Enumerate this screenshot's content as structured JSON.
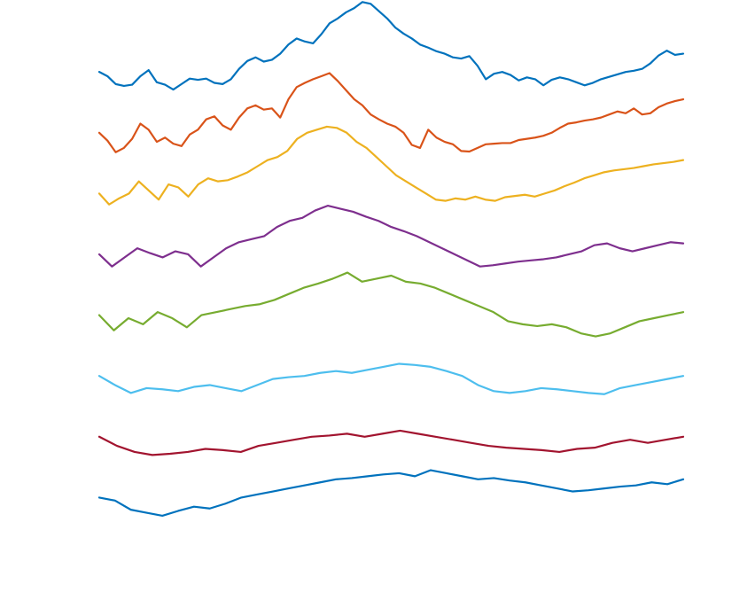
{
  "chart_data": {
    "type": "line",
    "title": "",
    "xlabel": "",
    "ylabel": "",
    "axes_visible": false,
    "grid": false,
    "legend": "none",
    "x": {
      "start": 1,
      "step": 1,
      "count": 100
    },
    "ylim": [
      0,
      8.6
    ],
    "series": [
      {
        "color": "#0072BD",
        "offset": 8,
        "values": [
          0.0,
          -0.07,
          -0.2,
          -0.23,
          -0.21,
          -0.07,
          0.03,
          -0.17,
          -0.21,
          -0.29,
          -0.2,
          -0.11,
          -0.13,
          -0.11,
          -0.18,
          -0.2,
          -0.12,
          0.05,
          0.18,
          0.24,
          0.17,
          0.2,
          0.3,
          0.45,
          0.55,
          0.5,
          0.47,
          0.62,
          0.8,
          0.88,
          0.98,
          1.05,
          1.15,
          1.12,
          1.0,
          0.88,
          0.73,
          0.63,
          0.55,
          0.45,
          0.4,
          0.34,
          0.3,
          0.24,
          0.22,
          0.26,
          0.1,
          -0.12,
          -0.03,
          0.0,
          -0.05,
          -0.14,
          -0.09,
          -0.12,
          -0.22,
          -0.13,
          -0.09,
          -0.12,
          -0.17,
          -0.22,
          -0.18,
          -0.12,
          -0.08,
          -0.04,
          0.0,
          0.02,
          0.05,
          0.14,
          0.27,
          0.35,
          0.28,
          0.3
        ]
      },
      {
        "color": "#D95319",
        "offset": 7,
        "values": [
          0.0,
          -0.13,
          -0.32,
          -0.25,
          -0.1,
          0.15,
          0.05,
          -0.15,
          -0.08,
          -0.18,
          -0.22,
          -0.03,
          0.05,
          0.22,
          0.27,
          0.12,
          0.05,
          0.25,
          0.4,
          0.45,
          0.38,
          0.4,
          0.25,
          0.55,
          0.75,
          0.82,
          0.88,
          0.93,
          0.98,
          0.85,
          0.7,
          0.55,
          0.45,
          0.3,
          0.22,
          0.15,
          0.1,
          0.0,
          -0.2,
          -0.25,
          0.05,
          -0.08,
          -0.15,
          -0.19,
          -0.3,
          -0.31,
          -0.25,
          -0.19,
          -0.18,
          -0.17,
          -0.17,
          -0.12,
          -0.1,
          -0.08,
          -0.05,
          0.0,
          0.08,
          0.15,
          0.17,
          0.2,
          0.22,
          0.25,
          0.3,
          0.35,
          0.32,
          0.4,
          0.3,
          0.32,
          0.42,
          0.48,
          0.52,
          0.55
        ]
      },
      {
        "color": "#EDB120",
        "offset": 6,
        "values": [
          0.0,
          -0.18,
          -0.08,
          0.0,
          0.2,
          0.05,
          -0.1,
          0.15,
          0.1,
          -0.05,
          0.15,
          0.25,
          0.2,
          0.22,
          0.28,
          0.35,
          0.45,
          0.55,
          0.6,
          0.7,
          0.9,
          1.0,
          1.05,
          1.1,
          1.08,
          1.0,
          0.85,
          0.75,
          0.6,
          0.45,
          0.3,
          0.2,
          0.1,
          0.0,
          -0.1,
          -0.12,
          -0.08,
          -0.1,
          -0.05,
          -0.1,
          -0.12,
          -0.06,
          -0.04,
          -0.02,
          -0.05,
          0.0,
          0.05,
          0.12,
          0.18,
          0.25,
          0.3,
          0.35,
          0.38,
          0.4,
          0.42,
          0.45,
          0.48,
          0.5,
          0.52,
          0.55
        ]
      },
      {
        "color": "#7E2F8E",
        "offset": 5,
        "values": [
          0.0,
          -0.2,
          -0.05,
          0.1,
          0.02,
          -0.05,
          0.05,
          0.0,
          -0.2,
          -0.05,
          0.1,
          0.2,
          0.25,
          0.3,
          0.45,
          0.55,
          0.6,
          0.72,
          0.8,
          0.75,
          0.7,
          0.62,
          0.55,
          0.45,
          0.38,
          0.3,
          0.2,
          0.1,
          0.0,
          -0.1,
          -0.2,
          -0.18,
          -0.15,
          -0.12,
          -0.1,
          -0.08,
          -0.05,
          0.0,
          0.05,
          0.15,
          0.18,
          0.1,
          0.05,
          0.1,
          0.15,
          0.2,
          0.18
        ]
      },
      {
        "color": "#77AC30",
        "offset": 4,
        "values": [
          0.0,
          -0.25,
          -0.05,
          -0.15,
          0.05,
          -0.05,
          -0.2,
          0.0,
          0.05,
          0.1,
          0.15,
          0.18,
          0.25,
          0.35,
          0.45,
          0.52,
          0.6,
          0.7,
          0.55,
          0.6,
          0.65,
          0.55,
          0.52,
          0.45,
          0.35,
          0.25,
          0.15,
          0.05,
          -0.1,
          -0.15,
          -0.18,
          -0.15,
          -0.2,
          -0.3,
          -0.35,
          -0.3,
          -0.2,
          -0.1,
          -0.05,
          0.0,
          0.05
        ]
      },
      {
        "color": "#4DBEEE",
        "offset": 3,
        "values": [
          0.0,
          -0.15,
          -0.28,
          -0.2,
          -0.22,
          -0.25,
          -0.18,
          -0.15,
          -0.2,
          -0.25,
          -0.15,
          -0.05,
          -0.02,
          0.0,
          0.05,
          0.08,
          0.05,
          0.1,
          0.15,
          0.2,
          0.18,
          0.15,
          0.08,
          0.0,
          -0.15,
          -0.25,
          -0.28,
          -0.25,
          -0.2,
          -0.22,
          -0.25,
          -0.28,
          -0.3,
          -0.2,
          -0.15,
          -0.1,
          -0.05,
          0.0
        ]
      },
      {
        "color": "#A2142F",
        "offset": 2,
        "values": [
          0.0,
          -0.15,
          -0.25,
          -0.3,
          -0.28,
          -0.25,
          -0.2,
          -0.22,
          -0.25,
          -0.15,
          -0.1,
          -0.05,
          0.0,
          0.02,
          0.05,
          0.0,
          0.05,
          0.1,
          0.05,
          0.0,
          -0.05,
          -0.1,
          -0.15,
          -0.18,
          -0.2,
          -0.22,
          -0.25,
          -0.2,
          -0.18,
          -0.1,
          -0.05,
          -0.1,
          -0.05,
          0.0
        ]
      },
      {
        "color": "#0072BD",
        "offset": 1,
        "values": [
          0.0,
          -0.05,
          -0.2,
          -0.25,
          -0.3,
          -0.22,
          -0.15,
          -0.18,
          -0.1,
          0.0,
          0.05,
          0.1,
          0.15,
          0.2,
          0.25,
          0.3,
          0.32,
          0.35,
          0.38,
          0.4,
          0.35,
          0.45,
          0.4,
          0.35,
          0.3,
          0.32,
          0.28,
          0.25,
          0.2,
          0.15,
          0.1,
          0.12,
          0.15,
          0.18,
          0.2,
          0.25,
          0.22,
          0.3
        ]
      }
    ]
  }
}
